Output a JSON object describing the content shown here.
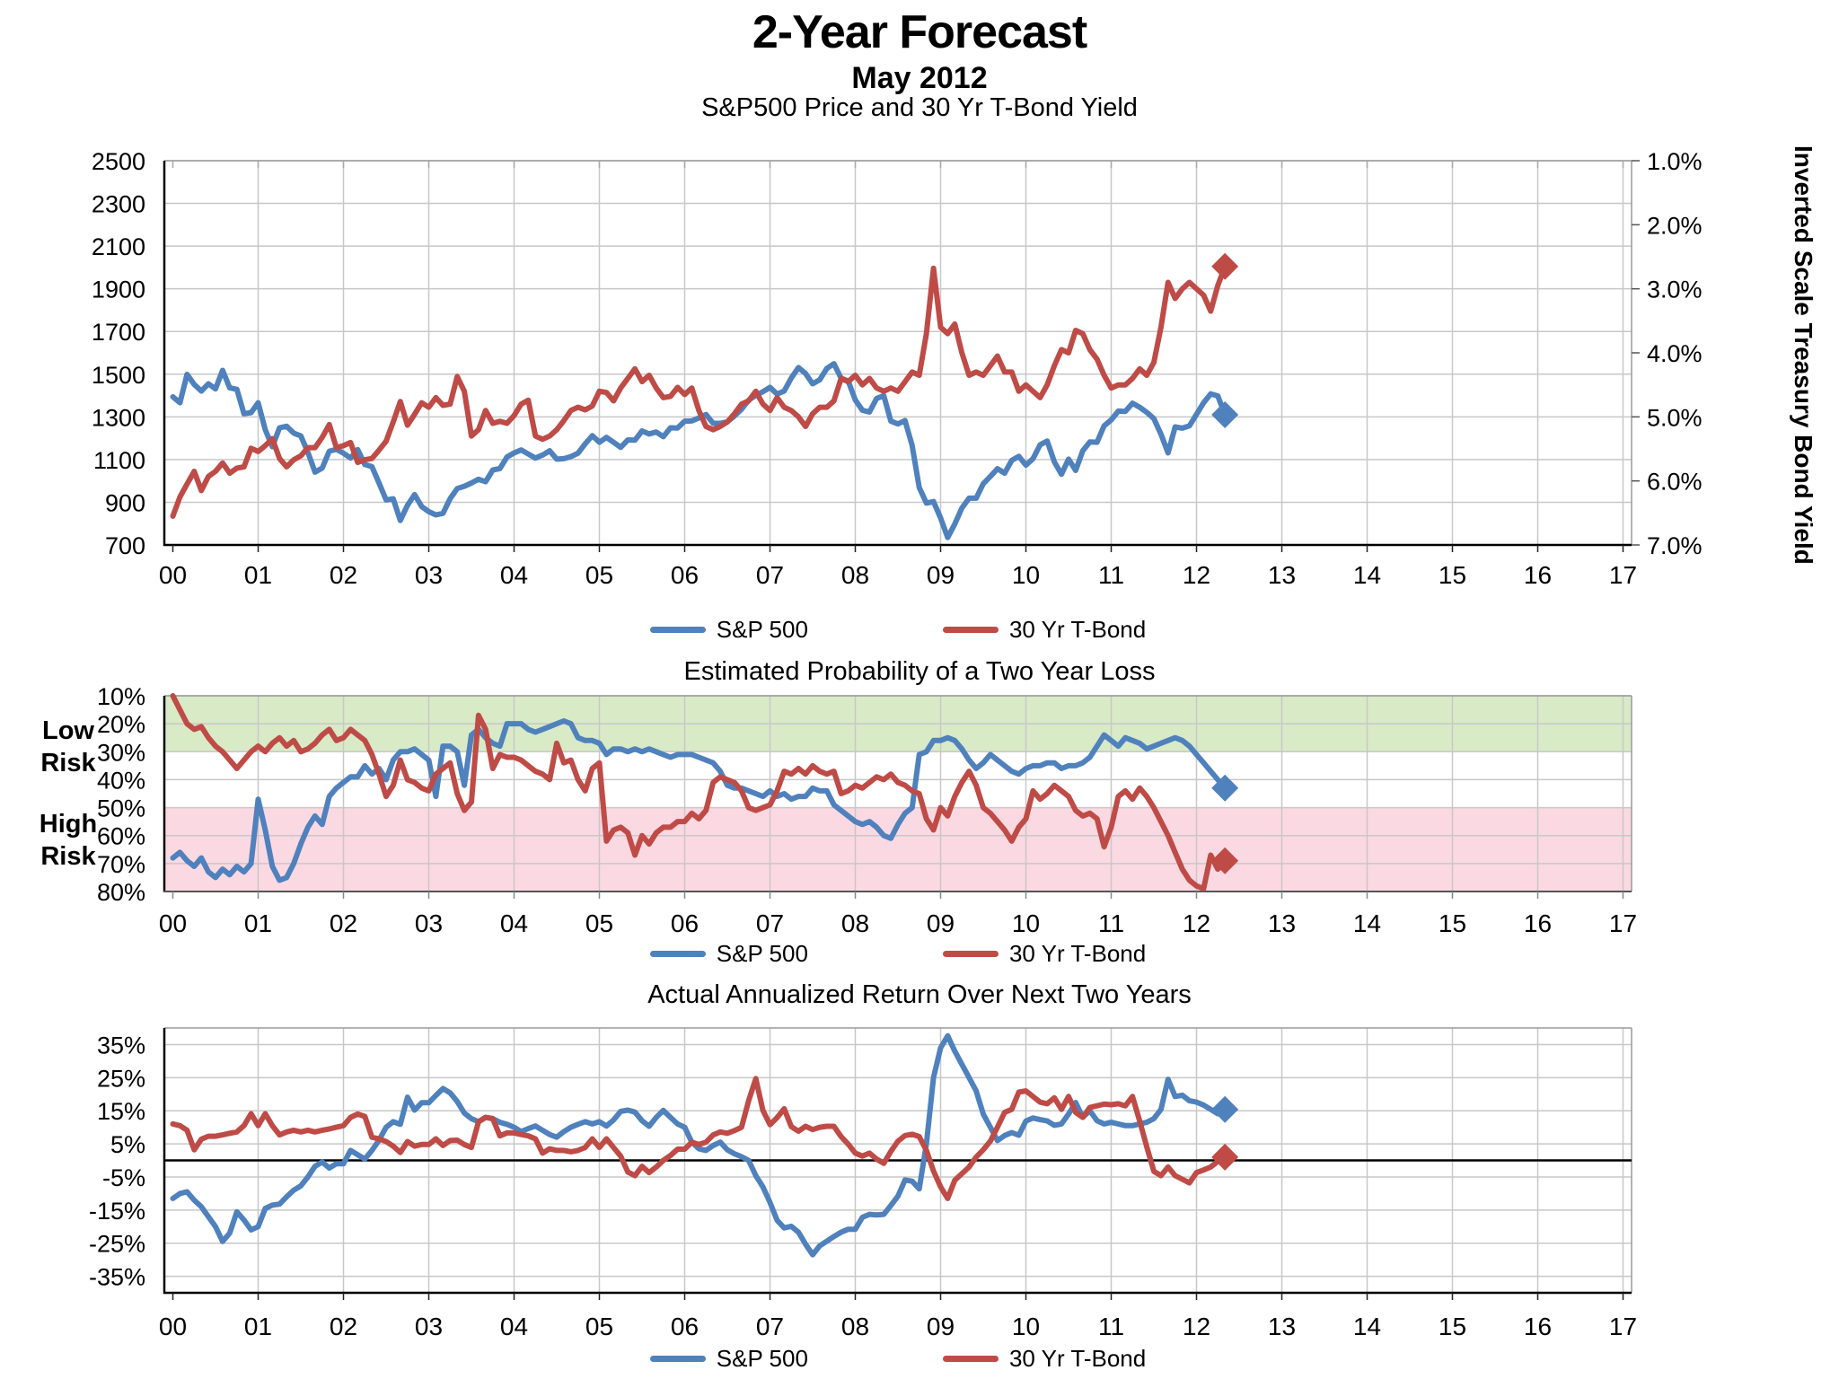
{
  "page": {
    "title": "2-Year Forecast",
    "subtitle": "May 2012"
  },
  "colors": {
    "sp500": "#4f81bd",
    "tbond": "#bf4b47",
    "grid": "#c8c8c8",
    "border": "#9a9a9a",
    "spine": "#000000",
    "low_risk_band": "#d8eac6",
    "high_risk_band": "#fbd9e2"
  },
  "legend": {
    "sp500": "S&P 500",
    "tbond": "30 Yr T-Bond"
  },
  "x_axis": {
    "tick_labels": [
      "00",
      "01",
      "02",
      "03",
      "04",
      "05",
      "06",
      "07",
      "08",
      "09",
      "10",
      "11",
      "12",
      "13",
      "14",
      "15",
      "16",
      "17"
    ]
  },
  "chart_data": [
    {
      "id": "price-yield",
      "type": "line",
      "title": "S&P500 Price and 30 Yr T-Bond Yield",
      "left_axis": {
        "min": 700,
        "max": 2500,
        "tick_values": [
          2500,
          2300,
          2100,
          1900,
          1700,
          1500,
          1300,
          1100,
          900,
          700
        ],
        "tick_labels": [
          "2500",
          "2300",
          "2100",
          "1900",
          "1700",
          "1500",
          "1300",
          "1100",
          "900",
          "700"
        ]
      },
      "right_axis": {
        "title": "Inverted Scale Treasury Bond Yield",
        "min": 1.0,
        "max": 7.0,
        "inverted": true,
        "tick_values": [
          1,
          2,
          3,
          4,
          5,
          6,
          7
        ],
        "tick_labels": [
          "1.0%",
          "2.0%",
          "3.0%",
          "4.0%",
          "5.0%",
          "6.0%",
          "7.0%"
        ]
      },
      "x_start": 0,
      "points_per_year": 12,
      "series": [
        {
          "name": "S&P 500",
          "color_key": "sp500",
          "axis": "left",
          "end_marker": "diamond",
          "values": [
            1394,
            1366,
            1499,
            1452,
            1421,
            1455,
            1431,
            1518,
            1436,
            1429,
            1315,
            1320,
            1366,
            1240,
            1160,
            1249,
            1256,
            1224,
            1211,
            1134,
            1041,
            1060,
            1139,
            1148,
            1130,
            1107,
            1147,
            1077,
            1067,
            990,
            911,
            916,
            815,
            886,
            936,
            880,
            856,
            841,
            848,
            917,
            964,
            975,
            990,
            1008,
            996,
            1051,
            1058,
            1112,
            1131,
            1145,
            1126,
            1107,
            1121,
            1141,
            1102,
            1104,
            1114,
            1130,
            1174,
            1212,
            1181,
            1204,
            1181,
            1157,
            1192,
            1191,
            1234,
            1220,
            1229,
            1207,
            1249,
            1248,
            1280,
            1281,
            1295,
            1311,
            1270,
            1270,
            1277,
            1304,
            1336,
            1378,
            1401,
            1418,
            1438,
            1407,
            1421,
            1482,
            1531,
            1503,
            1455,
            1474,
            1527,
            1549,
            1481,
            1468,
            1379,
            1331,
            1323,
            1386,
            1400,
            1280,
            1267,
            1283,
            1166,
            969,
            896,
            903,
            826,
            735,
            798,
            873,
            919,
            919,
            987,
            1021,
            1057,
            1036,
            1096,
            1115,
            1074,
            1104,
            1169,
            1187,
            1089,
            1031,
            1102,
            1049,
            1141,
            1183,
            1181,
            1258,
            1286,
            1327,
            1326,
            1364,
            1345,
            1321,
            1292,
            1219,
            1131,
            1253,
            1247,
            1258,
            1312,
            1366,
            1408,
            1398,
            1310
          ]
        },
        {
          "name": "30 Yr T-Bond",
          "color_key": "tbond",
          "axis": "right",
          "end_marker": "diamond",
          "values": [
            6.55,
            6.25,
            6.05,
            5.85,
            6.15,
            5.93,
            5.85,
            5.72,
            5.88,
            5.8,
            5.78,
            5.49,
            5.54,
            5.45,
            5.34,
            5.65,
            5.78,
            5.67,
            5.61,
            5.48,
            5.48,
            5.32,
            5.12,
            5.48,
            5.45,
            5.4,
            5.71,
            5.67,
            5.65,
            5.52,
            5.38,
            5.08,
            4.76,
            5.13,
            4.96,
            4.78,
            4.85,
            4.7,
            4.82,
            4.8,
            4.37,
            4.6,
            5.3,
            5.2,
            4.9,
            5.1,
            5.07,
            5.1,
            4.98,
            4.8,
            4.74,
            5.3,
            5.35,
            5.3,
            5.2,
            5.06,
            4.9,
            4.85,
            4.89,
            4.83,
            4.6,
            4.62,
            4.75,
            4.55,
            4.4,
            4.25,
            4.45,
            4.35,
            4.55,
            4.7,
            4.68,
            4.54,
            4.65,
            4.55,
            4.9,
            5.15,
            5.2,
            5.15,
            5.08,
            4.95,
            4.8,
            4.75,
            4.6,
            4.8,
            4.9,
            4.7,
            4.85,
            4.9,
            5.0,
            5.15,
            4.95,
            4.85,
            4.85,
            4.75,
            4.4,
            4.45,
            4.35,
            4.5,
            4.4,
            4.55,
            4.6,
            4.55,
            4.6,
            4.45,
            4.3,
            4.35,
            3.7,
            2.68,
            3.6,
            3.7,
            3.55,
            4.0,
            4.35,
            4.3,
            4.35,
            4.2,
            4.05,
            4.3,
            4.3,
            4.6,
            4.5,
            4.6,
            4.7,
            4.5,
            4.2,
            3.95,
            4.0,
            3.65,
            3.7,
            3.95,
            4.1,
            4.35,
            4.55,
            4.5,
            4.5,
            4.4,
            4.25,
            4.35,
            4.15,
            3.6,
            2.9,
            3.15,
            3.0,
            2.9,
            3.0,
            3.1,
            3.35,
            2.95,
            2.65
          ]
        }
      ]
    },
    {
      "id": "loss-probability",
      "type": "line",
      "title": "Estimated Probability of a Two Year Loss",
      "y_axis": {
        "min": 10,
        "max": 80,
        "inverted": true,
        "tick_values": [
          10,
          20,
          30,
          40,
          50,
          60,
          70,
          80
        ],
        "tick_labels": [
          "10%",
          "20%",
          "30%",
          "40%",
          "50%",
          "60%",
          "70%",
          "80%"
        ]
      },
      "bands": [
        {
          "label": "Low Risk",
          "from": 10,
          "to": 30,
          "color_key": "low_risk_band"
        },
        {
          "label": "High Risk",
          "from": 50,
          "to": 80,
          "color_key": "high_risk_band"
        }
      ],
      "x_start": 0,
      "points_per_year": 12,
      "series": [
        {
          "name": "S&P 500",
          "color_key": "sp500",
          "end_marker": "diamond",
          "values": [
            68,
            66,
            69,
            71,
            68,
            73,
            75,
            72,
            74,
            71,
            73,
            70,
            47,
            58,
            71,
            76,
            75,
            70,
            63,
            57,
            53,
            56,
            46,
            43,
            41,
            39,
            39,
            35,
            38,
            36,
            40,
            33,
            30,
            30,
            29,
            31,
            33,
            46,
            28,
            28,
            30,
            42,
            24,
            22,
            25,
            27,
            28,
            20,
            20,
            20,
            22,
            23,
            22,
            21,
            20,
            19,
            20,
            25,
            26,
            26,
            27,
            31,
            29,
            29,
            30,
            29,
            30,
            29,
            30,
            31,
            32,
            31,
            31,
            31,
            32,
            33,
            34,
            37,
            42,
            43,
            43,
            44,
            45,
            46,
            44,
            46,
            45,
            47,
            46,
            46,
            43,
            44,
            44,
            49,
            51,
            53,
            55,
            56,
            55,
            57,
            60,
            61,
            56,
            52,
            50,
            31,
            30,
            26,
            26,
            25,
            26,
            29,
            33,
            36,
            34,
            31,
            33,
            35,
            37,
            38,
            36,
            35,
            35,
            34,
            34,
            36,
            35,
            35,
            34,
            32,
            28,
            24,
            26,
            28,
            25,
            26,
            27,
            29,
            28,
            27,
            26,
            25,
            26,
            28,
            31,
            34,
            37,
            40,
            43
          ]
        },
        {
          "name": "30 Yr T-Bond",
          "color_key": "tbond",
          "end_marker": "diamond",
          "values": [
            10,
            15,
            20,
            22,
            21,
            25,
            28,
            30,
            33,
            36,
            33,
            30,
            28,
            30,
            27,
            25,
            28,
            26,
            30,
            29,
            27,
            24,
            22,
            26,
            25,
            22,
            24,
            26,
            31,
            38,
            46,
            42,
            33,
            40,
            41,
            43,
            44,
            38,
            36,
            34,
            45,
            51,
            48,
            17,
            22,
            36,
            31,
            32,
            32,
            33,
            35,
            37,
            38,
            40,
            27,
            34,
            33,
            40,
            44,
            36,
            34,
            62,
            58,
            57,
            59,
            67,
            60,
            63,
            59,
            57,
            57,
            55,
            55,
            52,
            54,
            51,
            41,
            39,
            40,
            41,
            44,
            50,
            51,
            50,
            49,
            44,
            37,
            38,
            36,
            38,
            35,
            37,
            38,
            37,
            45,
            44,
            42,
            43,
            41,
            39,
            40,
            38,
            41,
            42,
            44,
            45,
            54,
            58,
            50,
            53,
            46,
            41,
            37,
            42,
            50,
            52,
            55,
            58,
            62,
            57,
            54,
            44,
            47,
            45,
            42,
            44,
            46,
            51,
            53,
            52,
            54,
            64,
            57,
            46,
            44,
            47,
            43,
            46,
            50,
            55,
            60,
            66,
            72,
            76,
            78,
            79,
            67,
            72,
            69
          ]
        }
      ]
    },
    {
      "id": "actual-return",
      "type": "line",
      "title": "Actual Annualized Return Over Next Two Years",
      "y_axis": {
        "min": -40,
        "max": 40,
        "tick_values": [
          35,
          25,
          15,
          5,
          -5,
          -15,
          -25,
          -35
        ],
        "tick_labels": [
          "35%",
          "25%",
          "15%",
          "5%",
          "-5%",
          "-15%",
          "-25%",
          "-35%"
        ]
      },
      "zero_line": true,
      "x_start": 0,
      "points_per_year": 12,
      "series": [
        {
          "name": "S&P 500",
          "color_key": "sp500",
          "end_marker": "diamond",
          "values": [
            -11.5,
            -10,
            -9.5,
            -12,
            -14,
            -17,
            -20,
            -24.5,
            -22,
            -15.5,
            -18,
            -21,
            -20,
            -14.5,
            -13.5,
            -13.2,
            -11,
            -9,
            -7.7,
            -5,
            -1.8,
            -0.5,
            -2.3,
            -1,
            -1,
            3,
            1.7,
            0.4,
            3,
            6.1,
            10,
            11.7,
            10.9,
            19.1,
            15.2,
            17.4,
            17.4,
            19.6,
            21.7,
            20.4,
            17.8,
            14.3,
            12.6,
            11.7,
            13,
            12.6,
            11.5,
            10.9,
            10,
            8.7,
            9.6,
            10.4,
            9.1,
            7.8,
            7,
            8.7,
            10,
            10.9,
            11.7,
            11,
            11.7,
            10.4,
            12.2,
            14.8,
            15.2,
            14.6,
            12,
            10.3,
            13,
            15.1,
            13,
            11,
            10,
            5.5,
            3.5,
            3,
            4.5,
            5.5,
            3.2,
            2,
            1.1,
            0,
            -4.6,
            -8,
            -12.7,
            -18.1,
            -20.4,
            -19.9,
            -21.7,
            -25.3,
            -28.5,
            -25.8,
            -24.4,
            -23,
            -21.7,
            -20.8,
            -20.8,
            -17.2,
            -16.3,
            -16.5,
            -16.3,
            -13.6,
            -10.8,
            -5.9,
            -6.3,
            -8.6,
            5,
            25,
            34,
            37.6,
            33,
            29,
            25,
            21,
            14,
            10,
            6,
            7.5,
            8.4,
            7.6,
            11.9,
            12.8,
            12.3,
            11.9,
            10.6,
            11,
            14,
            17.5,
            13,
            15,
            12,
            11,
            11.5,
            11,
            10.5,
            10.5,
            11,
            11.5,
            12.6,
            15.4,
            24.5,
            19.3,
            19.7,
            18,
            17.6,
            16.7,
            15.4,
            14.1,
            15.4
          ]
        },
        {
          "name": "30 Yr T-Bond",
          "color_key": "tbond",
          "end_marker": "diamond",
          "values": [
            11,
            10.5,
            9.1,
            3.2,
            6.4,
            7.3,
            7.3,
            7.7,
            8.2,
            8.6,
            10.5,
            14.1,
            10.5,
            14.1,
            10.5,
            7.7,
            8.6,
            9.1,
            8.6,
            9.1,
            8.6,
            9.1,
            9.5,
            10,
            10.5,
            13,
            14,
            13.3,
            7,
            6.5,
            5.7,
            4.3,
            2.4,
            5.7,
            4.3,
            4.8,
            4.8,
            6.5,
            4.5,
            6,
            6.1,
            4.8,
            3.9,
            11.7,
            13,
            12.6,
            7.4,
            8.3,
            8.3,
            7.8,
            7.4,
            6.5,
            2.2,
            3.5,
            3,
            3,
            2.6,
            3,
            3.9,
            6.5,
            3.9,
            6.5,
            3.9,
            1.3,
            -3.5,
            -4.6,
            -1.8,
            -3.7,
            -2,
            0,
            1.5,
            3.4,
            3.4,
            5.5,
            4.8,
            5.5,
            7.7,
            8.6,
            8.2,
            9,
            10,
            18,
            24.7,
            15.1,
            10.8,
            12.9,
            15.6,
            10.2,
            8.8,
            10.3,
            9.3,
            10,
            10.3,
            10.3,
            7.2,
            4.9,
            2.2,
            1.3,
            2.2,
            0.4,
            -0.9,
            2.7,
            5.8,
            7.5,
            7.9,
            7.2,
            3,
            -3.2,
            -8,
            -11.5,
            -6,
            -4,
            -2,
            1,
            3.2,
            5.8,
            10,
            14.5,
            15.4,
            20.6,
            21,
            19.3,
            17.6,
            17.1,
            18.9,
            15.4,
            19.3,
            14.5,
            13,
            16,
            16.5,
            17,
            16.8,
            17.1,
            16.5,
            19.3,
            11.9,
            4.1,
            -3.3,
            -4.6,
            -2,
            -4.6,
            -5.7,
            -6.8,
            -3.7,
            -2.9,
            -2,
            -0.3,
            1
          ]
        }
      ]
    }
  ]
}
